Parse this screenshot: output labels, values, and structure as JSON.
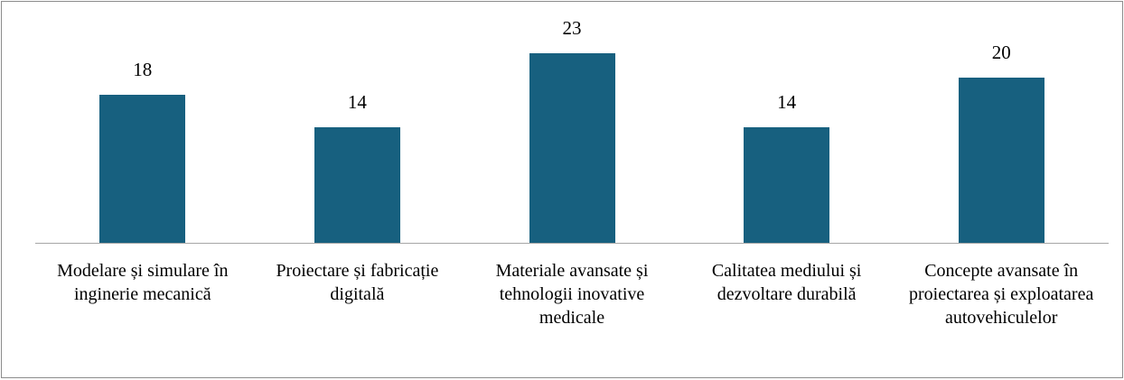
{
  "chart_data": {
    "type": "bar",
    "categories": [
      "Modelare și simulare în inginerie mecanică",
      "Proiectare și fabricație digitală",
      "Materiale avansate și tehnologii inovative medicale",
      "Calitatea mediului și dezvoltare durabilă",
      "Concepte avansate în proiectarea și exploatarea autovehiculelor"
    ],
    "values": [
      18,
      14,
      23,
      14,
      20
    ],
    "color": "#17607f"
  }
}
